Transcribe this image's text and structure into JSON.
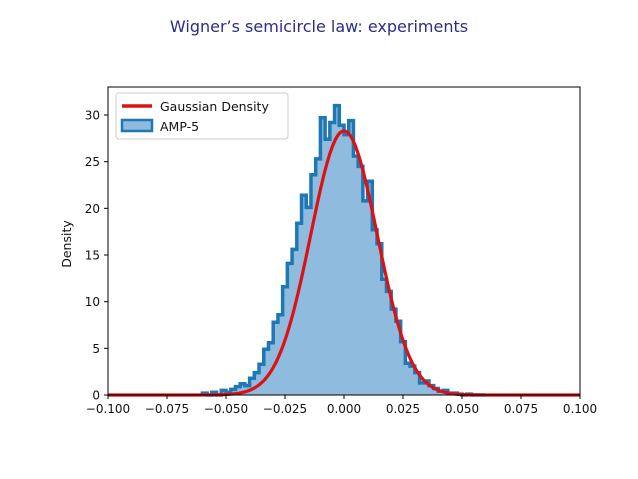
{
  "chart_data": {
    "type": "histogram",
    "title": "Wigner’s semicircle law: experiments",
    "xlabel": "",
    "ylabel": "Density",
    "xlim": [
      -0.1,
      0.1
    ],
    "ylim": [
      0,
      33
    ],
    "xticks": [
      -0.1,
      -0.075,
      -0.05,
      -0.025,
      0.0,
      0.025,
      0.05,
      0.075,
      0.1
    ],
    "xtick_labels": [
      "−0.100",
      "−0.075",
      "−0.050",
      "−0.025",
      "0.000",
      "0.025",
      "0.050",
      "0.075",
      "0.100"
    ],
    "yticks": [
      0,
      5,
      10,
      15,
      20,
      25,
      30
    ],
    "ytick_labels": [
      "0",
      "5",
      "10",
      "15",
      "20",
      "25",
      "30"
    ],
    "legend_position": "top-left",
    "series": [
      {
        "name": "Gaussian Density",
        "kind": "line",
        "color": "#dd1111",
        "mean": 0.0,
        "std": 0.0141,
        "x_range": [
          -0.1,
          0.1
        ]
      },
      {
        "name": "AMP-5",
        "kind": "histogram",
        "color": "#1f77b4",
        "fill_color": "#8fbbdf",
        "bin_edges_start": -0.06,
        "bin_width": 0.002,
        "values": [
          0.2,
          0.0,
          0.3,
          0.0,
          0.5,
          0.3,
          0.6,
          0.9,
          1.2,
          1.0,
          1.8,
          2.4,
          3.3,
          4.9,
          5.6,
          7.8,
          8.6,
          11.6,
          14.1,
          15.6,
          18.4,
          21.4,
          20.1,
          23.6,
          25.3,
          29.7,
          27.4,
          29.2,
          31.0,
          28.9,
          27.9,
          29.4,
          25.6,
          24.5,
          20.8,
          22.9,
          17.7,
          16.2,
          12.4,
          11.1,
          9.2,
          7.9,
          5.7,
          3.4,
          3.1,
          2.4,
          1.3,
          1.5,
          1.0,
          0.7,
          0.4,
          0.5,
          0.2,
          0.2,
          0.1,
          0.0,
          0.1,
          0.0,
          0.0,
          0.0
        ]
      }
    ]
  }
}
